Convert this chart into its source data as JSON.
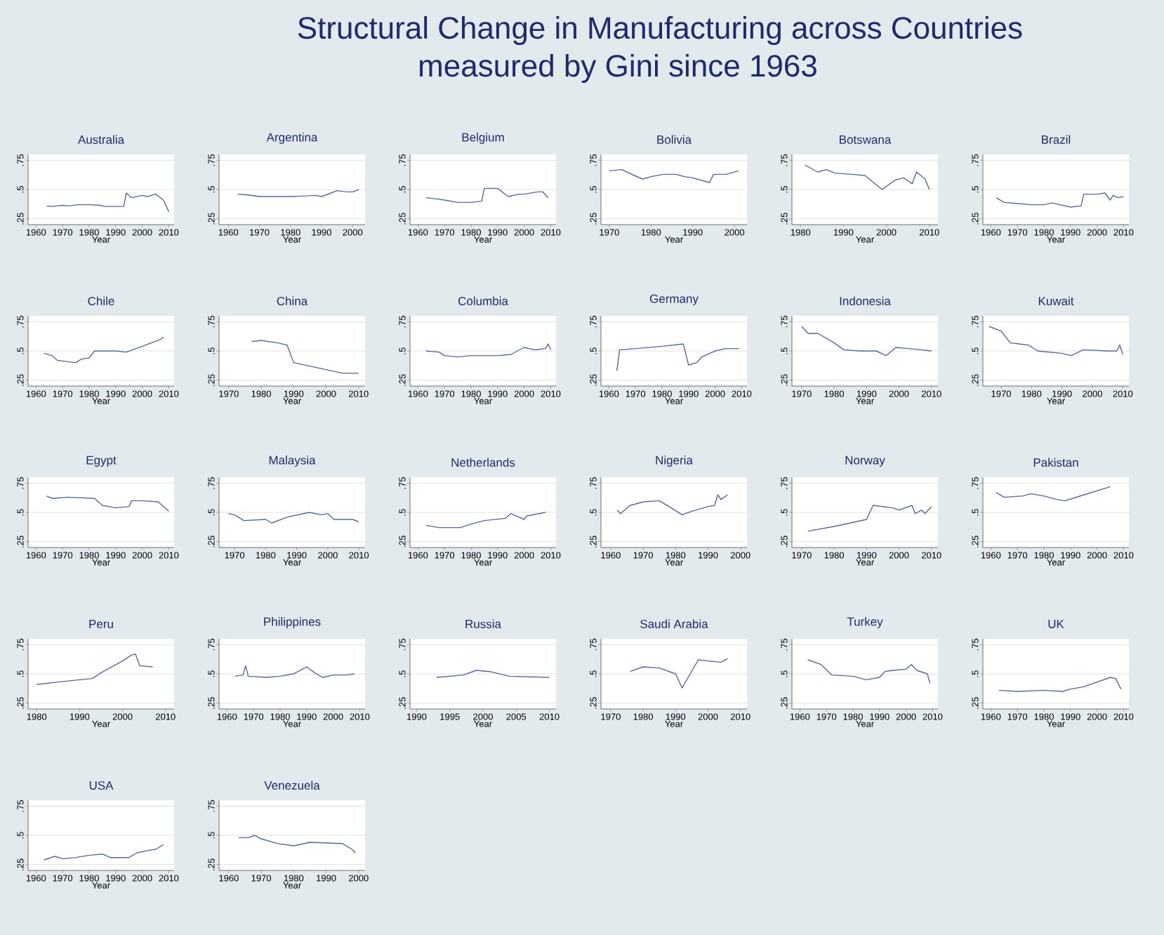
{
  "chart_data": [
    {
      "type": "line",
      "title": "Australia",
      "xlabel": "Year",
      "annotations": [
        "Structural Change in Manufacturing across Countries",
        "measured by Gini since 1963"
      ],
      "color": "#5a6896",
      "grid": "y",
      "ylim": [
        0.2,
        0.8
      ],
      "yticks": [
        {
          "value": 0.25,
          "label": ".25"
        },
        {
          "value": 0.5,
          "label": ".5"
        },
        {
          "value": 0.75,
          "label": ".75"
        }
      ],
      "xlim": [
        1957,
        2012
      ],
      "xticks": [
        1960,
        1970,
        1980,
        1990,
        2000,
        2010
      ],
      "x": [
        1964,
        1966,
        1970,
        1972,
        1976,
        1980,
        1984,
        1986,
        1990,
        1993,
        1994,
        1996,
        2000,
        2002,
        2005,
        2008,
        2010
      ],
      "values": [
        0.36,
        0.355,
        0.365,
        0.36,
        0.37,
        0.37,
        0.365,
        0.355,
        0.355,
        0.355,
        0.47,
        0.43,
        0.45,
        0.44,
        0.46,
        0.41,
        0.31
      ]
    },
    {
      "type": "line",
      "title": "Argentina",
      "xlabel": "Year",
      "color": "#5a6896",
      "grid": "y",
      "ylim": [
        0.2,
        0.8
      ],
      "yticks": [
        {
          "value": 0.25,
          "label": ".25"
        },
        {
          "value": 0.5,
          "label": ".5"
        },
        {
          "value": 0.75,
          "label": ".75"
        }
      ],
      "xlim": [
        1957,
        2004
      ],
      "xticks": [
        1960,
        1970,
        1980,
        1990,
        2000
      ],
      "x": [
        1963,
        1966,
        1970,
        1975,
        1980,
        1985,
        1988,
        1990,
        1993,
        1995,
        1998,
        2000,
        2002
      ],
      "values": [
        0.46,
        0.455,
        0.44,
        0.44,
        0.44,
        0.445,
        0.45,
        0.44,
        0.47,
        0.49,
        0.48,
        0.48,
        0.5
      ]
    },
    {
      "type": "line",
      "title": "Belgium",
      "xlabel": "Year",
      "color": "#5a6896",
      "grid": "y",
      "ylim": [
        0.2,
        0.8
      ],
      "yticks": [
        {
          "value": 0.25,
          "label": ".25"
        },
        {
          "value": 0.5,
          "label": ".5"
        },
        {
          "value": 0.75,
          "label": ".75"
        }
      ],
      "xlim": [
        1957,
        2012
      ],
      "xticks": [
        1960,
        1970,
        1980,
        1990,
        2000,
        2010
      ],
      "x": [
        1963,
        1967,
        1970,
        1975,
        1980,
        1984,
        1985,
        1990,
        1994,
        1998,
        2000,
        2005,
        2007,
        2009
      ],
      "values": [
        0.43,
        0.42,
        0.41,
        0.39,
        0.39,
        0.4,
        0.51,
        0.51,
        0.44,
        0.46,
        0.46,
        0.48,
        0.48,
        0.43
      ]
    },
    {
      "type": "line",
      "title": "Bolivia",
      "xlabel": "Year",
      "color": "#5a6896",
      "grid": "y",
      "ylim": [
        0.2,
        0.8
      ],
      "yticks": [
        {
          "value": 0.25,
          "label": ".25"
        },
        {
          "value": 0.5,
          "label": ".5"
        },
        {
          "value": 0.75,
          "label": ".75"
        }
      ],
      "xlim": [
        1968,
        2003
      ],
      "xticks": [
        1970,
        1980,
        1990,
        2000
      ],
      "x": [
        1970,
        1973,
        1976,
        1978,
        1980,
        1983,
        1986,
        1988,
        1990,
        1994,
        1995,
        1998,
        2001
      ],
      "values": [
        0.66,
        0.67,
        0.62,
        0.59,
        0.61,
        0.63,
        0.63,
        0.61,
        0.6,
        0.56,
        0.63,
        0.63,
        0.66
      ]
    },
    {
      "type": "line",
      "title": "Botswana",
      "xlabel": "Year",
      "color": "#5a6896",
      "grid": "y",
      "ylim": [
        0.2,
        0.8
      ],
      "yticks": [
        {
          "value": 0.25,
          "label": ".25"
        },
        {
          "value": 0.5,
          "label": ".5"
        },
        {
          "value": 0.75,
          "label": ".75"
        }
      ],
      "xlim": [
        1978,
        2012
      ],
      "xticks": [
        1980,
        1990,
        2000,
        2010
      ],
      "x": [
        1981,
        1984,
        1986,
        1988,
        1992,
        1995,
        1999,
        2002,
        2004,
        2006,
        2007,
        2009,
        2010
      ],
      "values": [
        0.71,
        0.65,
        0.67,
        0.64,
        0.63,
        0.62,
        0.5,
        0.58,
        0.6,
        0.55,
        0.65,
        0.59,
        0.5
      ]
    },
    {
      "type": "line",
      "title": "Brazil",
      "xlabel": "Year",
      "color": "#5a6896",
      "grid": "y",
      "ylim": [
        0.2,
        0.8
      ],
      "yticks": [
        {
          "value": 0.25,
          "label": ".25"
        },
        {
          "value": 0.5,
          "label": ".5"
        },
        {
          "value": 0.75,
          "label": ".75"
        }
      ],
      "xlim": [
        1957,
        2012
      ],
      "xticks": [
        1960,
        1970,
        1980,
        1990,
        2000,
        2010
      ],
      "x": [
        1962,
        1965,
        1970,
        1975,
        1980,
        1983,
        1986,
        1990,
        1994,
        1995,
        2000,
        2003,
        2005,
        2006,
        2008,
        2010
      ],
      "values": [
        0.43,
        0.39,
        0.38,
        0.37,
        0.37,
        0.385,
        0.37,
        0.35,
        0.36,
        0.46,
        0.46,
        0.47,
        0.41,
        0.45,
        0.43,
        0.44
      ]
    },
    {
      "type": "line",
      "title": "Chile",
      "xlabel": "Year",
      "color": "#5a6896",
      "grid": "y",
      "ylim": [
        0.2,
        0.8
      ],
      "yticks": [
        {
          "value": 0.25,
          "label": ".25"
        },
        {
          "value": 0.5,
          "label": ".5"
        },
        {
          "value": 0.75,
          "label": ".75"
        }
      ],
      "xlim": [
        1957,
        2012
      ],
      "xticks": [
        1960,
        1970,
        1980,
        1990,
        2000,
        2010
      ],
      "x": [
        1963,
        1966,
        1968,
        1975,
        1977,
        1980,
        1982,
        1990,
        1994,
        2000,
        2007,
        2008
      ],
      "values": [
        0.48,
        0.46,
        0.42,
        0.4,
        0.43,
        0.44,
        0.5,
        0.5,
        0.49,
        0.54,
        0.6,
        0.62
      ]
    },
    {
      "type": "line",
      "title": "China",
      "xlabel": "Year",
      "color": "#5a6896",
      "grid": "y",
      "ylim": [
        0.2,
        0.8
      ],
      "yticks": [
        {
          "value": 0.25,
          "label": ".25"
        },
        {
          "value": 0.5,
          "label": ".5"
        },
        {
          "value": 0.75,
          "label": ".75"
        }
      ],
      "xlim": [
        1967,
        2012
      ],
      "xticks": [
        1970,
        1980,
        1990,
        2000,
        2010
      ],
      "x": [
        1977,
        1980,
        1985,
        1988,
        1990,
        1995,
        2000,
        2005,
        2010
      ],
      "values": [
        0.58,
        0.59,
        0.57,
        0.55,
        0.4,
        0.37,
        0.34,
        0.31,
        0.31
      ]
    },
    {
      "type": "line",
      "title": "Columbia",
      "xlabel": "Year",
      "color": "#5a6896",
      "grid": "y",
      "ylim": [
        0.2,
        0.8
      ],
      "yticks": [
        {
          "value": 0.25,
          "label": ".25"
        },
        {
          "value": 0.5,
          "label": ".5"
        },
        {
          "value": 0.75,
          "label": ".75"
        }
      ],
      "xlim": [
        1957,
        2012
      ],
      "xticks": [
        1960,
        1970,
        1980,
        1990,
        2000,
        2010
      ],
      "x": [
        1963,
        1968,
        1970,
        1975,
        1980,
        1990,
        1995,
        2000,
        2004,
        2008,
        2009,
        2010
      ],
      "values": [
        0.5,
        0.49,
        0.46,
        0.45,
        0.46,
        0.46,
        0.47,
        0.53,
        0.51,
        0.52,
        0.56,
        0.51
      ]
    },
    {
      "type": "line",
      "title": "Germany",
      "xlabel": "Year",
      "color": "#5a6896",
      "grid": "y",
      "ylim": [
        0.2,
        0.8
      ],
      "yticks": [
        {
          "value": 0.25,
          "label": ".25"
        },
        {
          "value": 0.5,
          "label": ".5"
        },
        {
          "value": 0.75,
          "label": ".75"
        }
      ],
      "xlim": [
        1957,
        2012
      ],
      "xticks": [
        1960,
        1970,
        1980,
        1990,
        2000,
        2010
      ],
      "x": [
        1963,
        1964,
        1970,
        1980,
        1988,
        1990,
        1993,
        1995,
        2000,
        2004,
        2009
      ],
      "values": [
        0.33,
        0.51,
        0.52,
        0.54,
        0.56,
        0.38,
        0.4,
        0.45,
        0.5,
        0.52,
        0.52
      ]
    },
    {
      "type": "line",
      "title": "Indonesia",
      "xlabel": "Year",
      "color": "#5a6896",
      "grid": "y",
      "ylim": [
        0.2,
        0.8
      ],
      "yticks": [
        {
          "value": 0.25,
          "label": ".25"
        },
        {
          "value": 0.5,
          "label": ".5"
        },
        {
          "value": 0.75,
          "label": ".75"
        }
      ],
      "xlim": [
        1967,
        2012
      ],
      "xticks": [
        1970,
        1980,
        1990,
        2000,
        2010
      ],
      "x": [
        1970,
        1972,
        1975,
        1980,
        1983,
        1988,
        1993,
        1996,
        1999,
        2003,
        2007,
        2010
      ],
      "values": [
        0.71,
        0.65,
        0.65,
        0.57,
        0.51,
        0.5,
        0.5,
        0.46,
        0.53,
        0.52,
        0.51,
        0.5
      ]
    },
    {
      "type": "line",
      "title": "Kuwait",
      "xlabel": "Year",
      "color": "#5a6896",
      "grid": "y",
      "ylim": [
        0.2,
        0.8
      ],
      "yticks": [
        {
          "value": 0.25,
          "label": ".25"
        },
        {
          "value": 0.5,
          "label": ".5"
        },
        {
          "value": 0.75,
          "label": ".75"
        }
      ],
      "xlim": [
        1964,
        2012
      ],
      "xticks": [
        1970,
        1980,
        1990,
        2000,
        2010
      ],
      "x": [
        1966,
        1970,
        1973,
        1976,
        1979,
        1982,
        1990,
        1993,
        1997,
        2005,
        2008,
        2009,
        2010
      ],
      "values": [
        0.71,
        0.67,
        0.57,
        0.56,
        0.55,
        0.5,
        0.48,
        0.46,
        0.51,
        0.5,
        0.5,
        0.55,
        0.47
      ]
    },
    {
      "type": "line",
      "title": "Egypt",
      "xlabel": "Year",
      "color": "#5a6896",
      "grid": "y",
      "ylim": [
        0.2,
        0.8
      ],
      "yticks": [
        {
          "value": 0.25,
          "label": ".25"
        },
        {
          "value": 0.5,
          "label": ".5"
        },
        {
          "value": 0.75,
          "label": ".75"
        }
      ],
      "xlim": [
        1957,
        2012
      ],
      "xticks": [
        1960,
        1970,
        1980,
        1990,
        2000,
        2010
      ],
      "x": [
        1964,
        1966,
        1972,
        1982,
        1985,
        1990,
        1995,
        1996,
        2000,
        2006,
        2010
      ],
      "values": [
        0.64,
        0.62,
        0.63,
        0.62,
        0.56,
        0.54,
        0.55,
        0.6,
        0.6,
        0.59,
        0.51
      ]
    },
    {
      "type": "line",
      "title": "Malaysia",
      "xlabel": "Year",
      "color": "#5a6896",
      "grid": "y",
      "ylim": [
        0.2,
        0.8
      ],
      "yticks": [
        {
          "value": 0.25,
          "label": ".25"
        },
        {
          "value": 0.5,
          "label": ".5"
        },
        {
          "value": 0.75,
          "label": ".75"
        }
      ],
      "xlim": [
        1965,
        2012
      ],
      "xticks": [
        1970,
        1980,
        1990,
        2000,
        2010
      ],
      "x": [
        1968,
        1970,
        1973,
        1980,
        1982,
        1987,
        1994,
        1998,
        2000,
        2002,
        2008,
        2010
      ],
      "values": [
        0.49,
        0.48,
        0.43,
        0.44,
        0.41,
        0.46,
        0.5,
        0.48,
        0.49,
        0.44,
        0.44,
        0.42
      ]
    },
    {
      "type": "line",
      "title": "Netherlands",
      "xlabel": "Year",
      "color": "#5a6896",
      "grid": "y",
      "ylim": [
        0.2,
        0.8
      ],
      "yticks": [
        {
          "value": 0.25,
          "label": ".25"
        },
        {
          "value": 0.5,
          "label": ".5"
        },
        {
          "value": 0.75,
          "label": ".75"
        }
      ],
      "xlim": [
        1957,
        2012
      ],
      "xticks": [
        1960,
        1970,
        1980,
        1990,
        2000,
        2010
      ],
      "x": [
        1963,
        1968,
        1976,
        1980,
        1985,
        1993,
        1995,
        1998,
        2000,
        2001,
        2008
      ],
      "values": [
        0.39,
        0.37,
        0.37,
        0.4,
        0.43,
        0.45,
        0.49,
        0.46,
        0.44,
        0.47,
        0.5
      ]
    },
    {
      "type": "line",
      "title": "Nigeria",
      "xlabel": "Year",
      "color": "#5a6896",
      "grid": "y",
      "ylim": [
        0.2,
        0.8
      ],
      "yticks": [
        {
          "value": 0.25,
          "label": ".25"
        },
        {
          "value": 0.5,
          "label": ".5"
        },
        {
          "value": 0.75,
          "label": ".75"
        }
      ],
      "xlim": [
        1957,
        2002
      ],
      "xticks": [
        1960,
        1970,
        1980,
        1990,
        2000
      ],
      "x": [
        1962,
        1963,
        1966,
        1970,
        1975,
        1978,
        1982,
        1985,
        1990,
        1992,
        1993,
        1994,
        1996
      ],
      "values": [
        0.52,
        0.49,
        0.56,
        0.59,
        0.6,
        0.55,
        0.48,
        0.51,
        0.55,
        0.56,
        0.65,
        0.61,
        0.65
      ]
    },
    {
      "type": "line",
      "title": "Norway",
      "xlabel": "Year",
      "color": "#5a6896",
      "grid": "y",
      "ylim": [
        0.2,
        0.8
      ],
      "yticks": [
        {
          "value": 0.25,
          "label": ".25"
        },
        {
          "value": 0.5,
          "label": ".5"
        },
        {
          "value": 0.75,
          "label": ".75"
        }
      ],
      "xlim": [
        1967,
        2012
      ],
      "xticks": [
        1970,
        1980,
        1990,
        2000,
        2010
      ],
      "x": [
        1972,
        1980,
        1990,
        1992,
        1998,
        2000,
        2004,
        2005,
        2007,
        2008,
        2010
      ],
      "values": [
        0.34,
        0.38,
        0.44,
        0.56,
        0.54,
        0.52,
        0.56,
        0.49,
        0.52,
        0.49,
        0.55
      ]
    },
    {
      "type": "line",
      "title": "Pakistan",
      "xlabel": "Year",
      "color": "#5a6896",
      "grid": "y",
      "ylim": [
        0.2,
        0.8
      ],
      "yticks": [
        {
          "value": 0.25,
          "label": ".25"
        },
        {
          "value": 0.5,
          "label": ".5"
        },
        {
          "value": 0.75,
          "label": ".75"
        }
      ],
      "xlim": [
        1957,
        2012
      ],
      "xticks": [
        1960,
        1970,
        1980,
        1990,
        2000,
        2010
      ],
      "x": [
        1962,
        1965,
        1972,
        1975,
        1980,
        1985,
        1988,
        1995,
        2005
      ],
      "values": [
        0.67,
        0.63,
        0.64,
        0.66,
        0.64,
        0.61,
        0.6,
        0.65,
        0.72
      ]
    },
    {
      "type": "line",
      "title": "Peru",
      "xlabel": "Year",
      "color": "#5a6896",
      "grid": "y",
      "ylim": [
        0.2,
        0.8
      ],
      "yticks": [
        {
          "value": 0.25,
          "label": ".25"
        },
        {
          "value": 0.5,
          "label": ".5"
        },
        {
          "value": 0.75,
          "label": ".75"
        }
      ],
      "xlim": [
        1978,
        2012
      ],
      "xticks": [
        1980,
        1990,
        2000,
        2010
      ],
      "x": [
        1980,
        1985,
        1990,
        1993,
        1995,
        1997,
        2000,
        2002,
        2003,
        2004,
        2007
      ],
      "values": [
        0.41,
        0.43,
        0.45,
        0.46,
        0.51,
        0.55,
        0.61,
        0.66,
        0.67,
        0.57,
        0.56
      ]
    },
    {
      "type": "line",
      "title": "Philippines",
      "xlabel": "Year",
      "color": "#5a6896",
      "grid": "y",
      "ylim": [
        0.2,
        0.8
      ],
      "yticks": [
        {
          "value": 0.25,
          "label": ".25"
        },
        {
          "value": 0.5,
          "label": ".5"
        },
        {
          "value": 0.75,
          "label": ".75"
        }
      ],
      "xlim": [
        1957,
        2012
      ],
      "xticks": [
        1960,
        1970,
        1980,
        1990,
        2000,
        2010
      ],
      "x": [
        1963,
        1966,
        1967,
        1968,
        1975,
        1980,
        1985,
        1990,
        1993,
        1996,
        2000,
        2005,
        2008
      ],
      "values": [
        0.48,
        0.49,
        0.57,
        0.48,
        0.47,
        0.48,
        0.5,
        0.56,
        0.51,
        0.47,
        0.49,
        0.49,
        0.5
      ]
    },
    {
      "type": "line",
      "title": "Russia",
      "xlabel": "Year",
      "color": "#5a6896",
      "grid": "y",
      "ylim": [
        0.2,
        0.8
      ],
      "yticks": [
        {
          "value": 0.25,
          "label": ".25"
        },
        {
          "value": 0.5,
          "label": ".5"
        },
        {
          "value": 0.75,
          "label": ".75"
        }
      ],
      "xlim": [
        1989,
        2011
      ],
      "xticks": [
        1990,
        1995,
        2000,
        2005,
        2010
      ],
      "x": [
        1993,
        1997,
        1999,
        2001,
        2004,
        2010
      ],
      "values": [
        0.47,
        0.49,
        0.53,
        0.52,
        0.48,
        0.47
      ]
    },
    {
      "type": "line",
      "title": "Saudi Arabia",
      "xlabel": "Year",
      "color": "#5a6896",
      "grid": "y",
      "ylim": [
        0.2,
        0.8
      ],
      "yticks": [
        {
          "value": 0.25,
          "label": ".25"
        },
        {
          "value": 0.5,
          "label": ".5"
        },
        {
          "value": 0.75,
          "label": ".75"
        }
      ],
      "xlim": [
        1967,
        2012
      ],
      "xticks": [
        1970,
        1980,
        1990,
        2000,
        2010
      ],
      "x": [
        1976,
        1980,
        1985,
        1990,
        1992,
        1997,
        2000,
        2004,
        2006
      ],
      "values": [
        0.52,
        0.56,
        0.55,
        0.5,
        0.38,
        0.62,
        0.61,
        0.6,
        0.63
      ]
    },
    {
      "type": "line",
      "title": "Turkey",
      "xlabel": "Year",
      "color": "#5a6896",
      "grid": "y",
      "ylim": [
        0.2,
        0.8
      ],
      "yticks": [
        {
          "value": 0.25,
          "label": ".25"
        },
        {
          "value": 0.5,
          "label": ".5"
        },
        {
          "value": 0.75,
          "label": ".75"
        }
      ],
      "xlim": [
        1957,
        2012
      ],
      "xticks": [
        1960,
        1970,
        1980,
        1990,
        2000,
        2010
      ],
      "x": [
        1963,
        1968,
        1972,
        1980,
        1985,
        1990,
        1992,
        1995,
        2000,
        2002,
        2004,
        2008,
        2009
      ],
      "values": [
        0.62,
        0.58,
        0.49,
        0.48,
        0.45,
        0.47,
        0.52,
        0.53,
        0.54,
        0.58,
        0.53,
        0.5,
        0.42
      ]
    },
    {
      "type": "line",
      "title": "UK",
      "xlabel": "Year",
      "color": "#5a6896",
      "grid": "y",
      "ylim": [
        0.2,
        0.8
      ],
      "yticks": [
        {
          "value": 0.25,
          "label": ".25"
        },
        {
          "value": 0.5,
          "label": ".5"
        },
        {
          "value": 0.75,
          "label": ".75"
        }
      ],
      "xlim": [
        1957,
        2012
      ],
      "xticks": [
        1960,
        1970,
        1980,
        1990,
        2000,
        2010
      ],
      "x": [
        1963,
        1970,
        1980,
        1987,
        1990,
        1995,
        2000,
        2005,
        2007,
        2009
      ],
      "values": [
        0.36,
        0.35,
        0.36,
        0.35,
        0.37,
        0.39,
        0.43,
        0.47,
        0.46,
        0.37
      ]
    },
    {
      "type": "line",
      "title": "USA",
      "xlabel": "Year",
      "color": "#5a6896",
      "grid": "y",
      "ylim": [
        0.2,
        0.8
      ],
      "yticks": [
        {
          "value": 0.25,
          "label": ".25"
        },
        {
          "value": 0.5,
          "label": ".5"
        },
        {
          "value": 0.75,
          "label": ".75"
        }
      ],
      "xlim": [
        1957,
        2012
      ],
      "xticks": [
        1960,
        1970,
        1980,
        1990,
        2000,
        2010
      ],
      "x": [
        1963,
        1967,
        1970,
        1975,
        1980,
        1985,
        1988,
        1995,
        1998,
        2002,
        2005,
        2008
      ],
      "values": [
        0.29,
        0.32,
        0.3,
        0.31,
        0.33,
        0.34,
        0.31,
        0.31,
        0.35,
        0.37,
        0.38,
        0.42
      ]
    },
    {
      "type": "line",
      "title": "Venezuela",
      "xlabel": "Year",
      "color": "#5a6896",
      "grid": "y",
      "ylim": [
        0.2,
        0.8
      ],
      "yticks": [
        {
          "value": 0.25,
          "label": ".25"
        },
        {
          "value": 0.5,
          "label": ".5"
        },
        {
          "value": 0.75,
          "label": ".75"
        }
      ],
      "xlim": [
        1957,
        2002
      ],
      "xticks": [
        1960,
        1970,
        1980,
        1990,
        2000
      ],
      "x": [
        1963,
        1966,
        1968,
        1970,
        1975,
        1980,
        1985,
        1995,
        1998,
        1999
      ],
      "values": [
        0.48,
        0.48,
        0.5,
        0.47,
        0.43,
        0.41,
        0.44,
        0.43,
        0.38,
        0.35
      ]
    }
  ]
}
